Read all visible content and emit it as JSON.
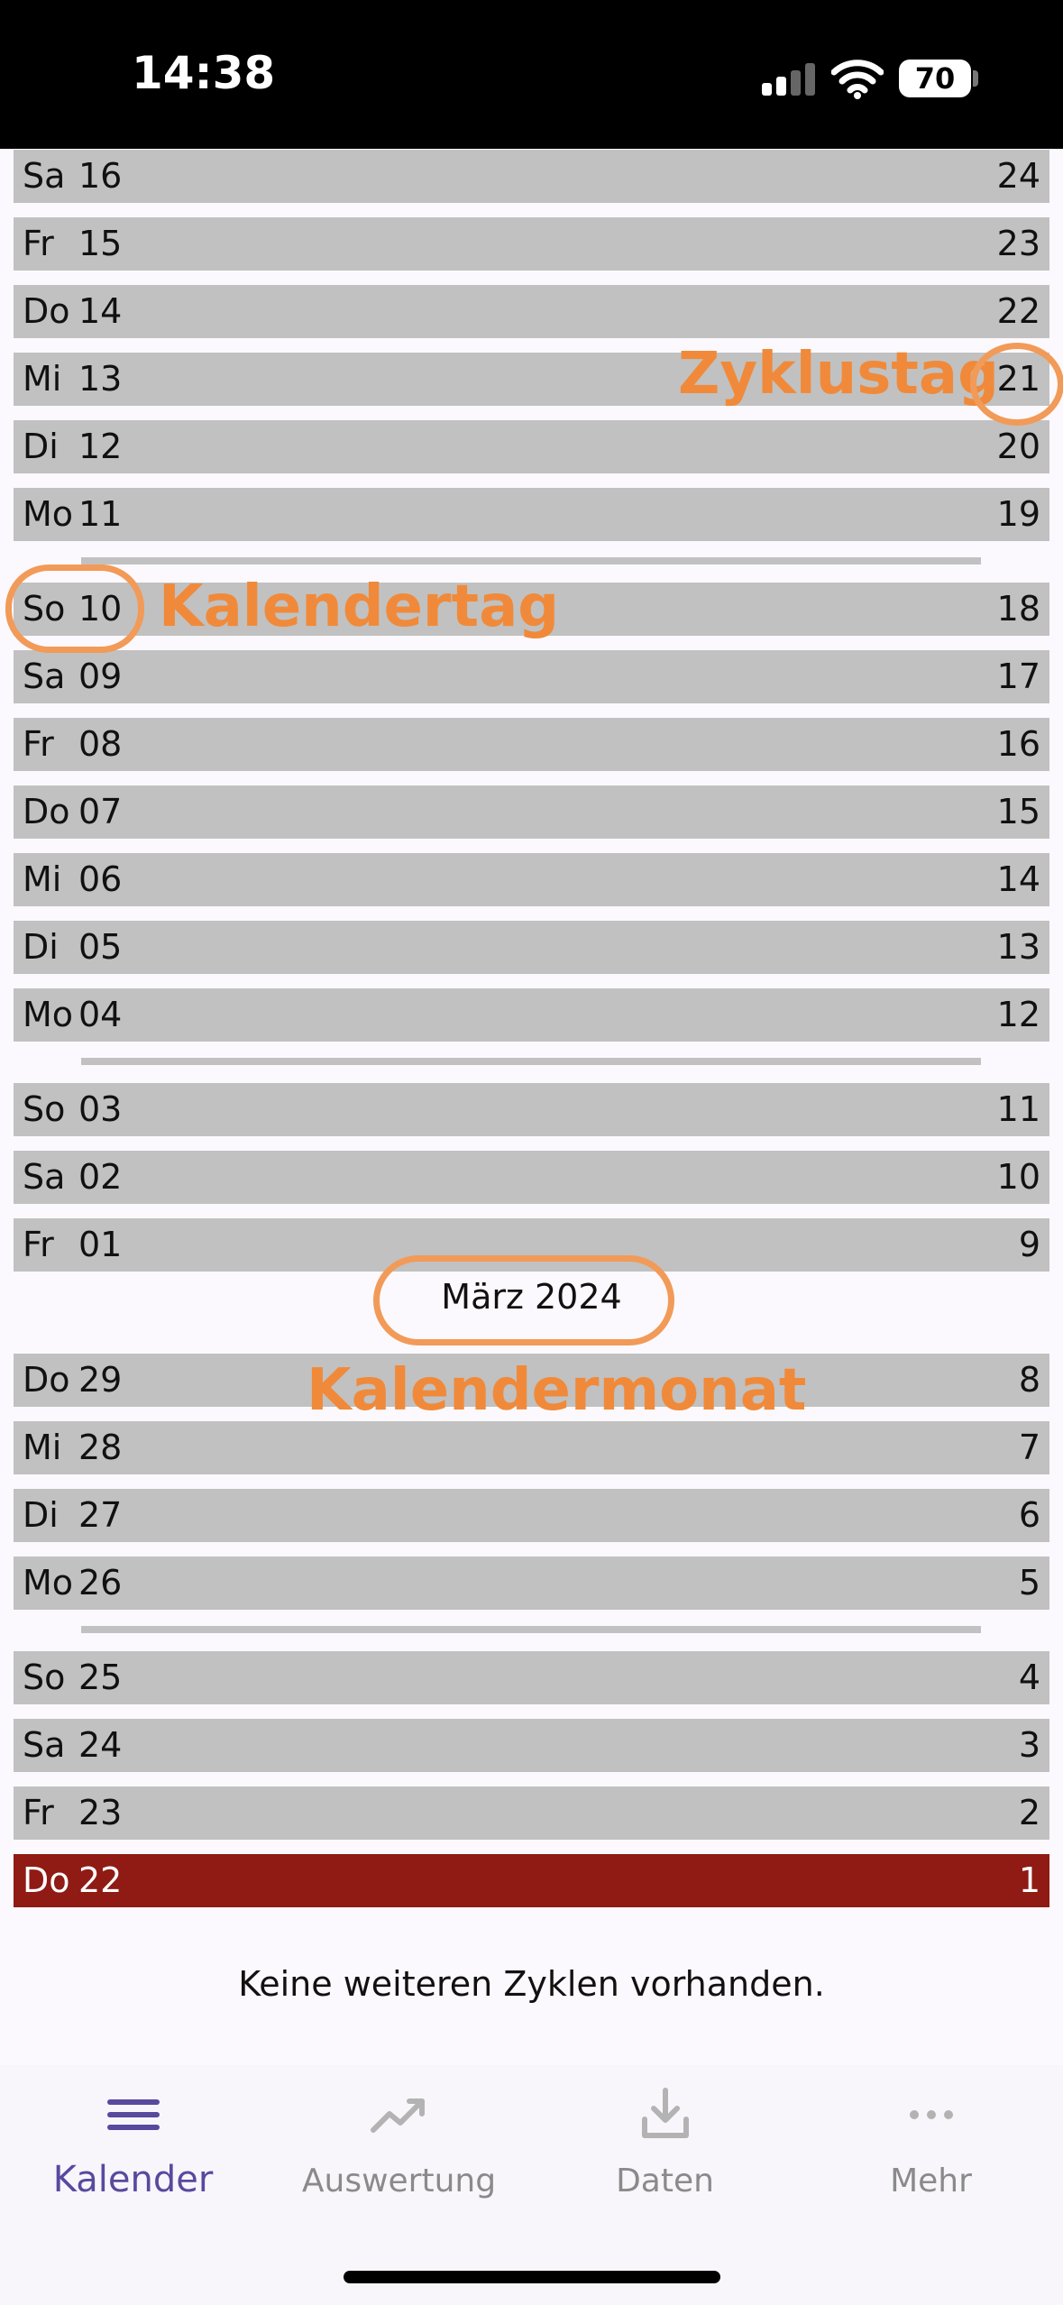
{
  "status_bar": {
    "time": "14:38",
    "battery": "70"
  },
  "rows": [
    {
      "weekday": "Sa",
      "day": "16",
      "cycle_day": "24"
    },
    {
      "weekday": "Fr",
      "day": "15",
      "cycle_day": "23"
    },
    {
      "weekday": "Do",
      "day": "14",
      "cycle_day": "22"
    },
    {
      "weekday": "Mi",
      "day": "13",
      "cycle_day": "21"
    },
    {
      "weekday": "Di",
      "day": "12",
      "cycle_day": "20"
    },
    {
      "weekday": "Mo",
      "day": "11",
      "cycle_day": "19"
    },
    {
      "weekday": "So",
      "day": "10",
      "cycle_day": "18"
    },
    {
      "weekday": "Sa",
      "day": "09",
      "cycle_day": "17"
    },
    {
      "weekday": "Fr",
      "day": "08",
      "cycle_day": "16"
    },
    {
      "weekday": "Do",
      "day": "07",
      "cycle_day": "15"
    },
    {
      "weekday": "Mi",
      "day": "06",
      "cycle_day": "14"
    },
    {
      "weekday": "Di",
      "day": "05",
      "cycle_day": "13"
    },
    {
      "weekday": "Mo",
      "day": "04",
      "cycle_day": "12"
    },
    {
      "weekday": "So",
      "day": "03",
      "cycle_day": "11"
    },
    {
      "weekday": "Sa",
      "day": "02",
      "cycle_day": "10"
    },
    {
      "weekday": "Fr",
      "day": "01",
      "cycle_day": "9"
    },
    {
      "weekday": "Do",
      "day": "29",
      "cycle_day": "8"
    },
    {
      "weekday": "Mi",
      "day": "28",
      "cycle_day": "7"
    },
    {
      "weekday": "Di",
      "day": "27",
      "cycle_day": "6"
    },
    {
      "weekday": "Mo",
      "day": "26",
      "cycle_day": "5"
    },
    {
      "weekday": "So",
      "day": "25",
      "cycle_day": "4"
    },
    {
      "weekday": "Sa",
      "day": "24",
      "cycle_day": "3"
    },
    {
      "weekday": "Fr",
      "day": "23",
      "cycle_day": "2"
    },
    {
      "weekday": "Do",
      "day": "22",
      "cycle_day": "1"
    }
  ],
  "month_label": "März 2024",
  "annotations": {
    "cycle_day": "Zyklustag",
    "calendar_day": "Kalendertag",
    "calendar_month": "Kalendermonat",
    "color": "#f08a3a"
  },
  "colors": {
    "row": "#c1c1c1",
    "period_start": "#8f1b14",
    "accent": "#574a9e"
  },
  "footer_note": "Keine weiteren Zyklen vorhanden.",
  "tabs": [
    {
      "label": "Kalender",
      "icon": "list-icon",
      "selected": true
    },
    {
      "label": "Auswertung",
      "icon": "trend-icon",
      "selected": false
    },
    {
      "label": "Daten",
      "icon": "download-icon",
      "selected": false
    },
    {
      "label": "Mehr",
      "icon": "more-icon",
      "selected": false
    }
  ]
}
